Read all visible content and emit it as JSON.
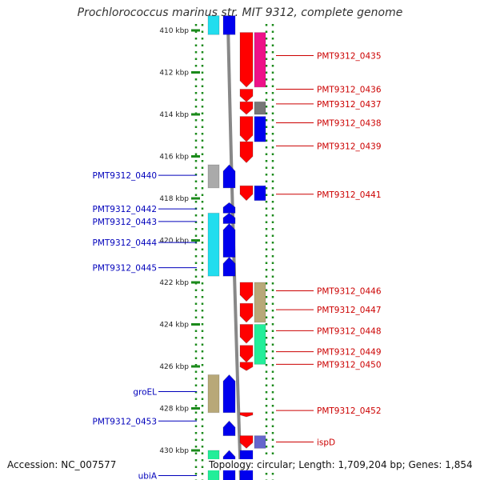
{
  "title": "Prochlorococcus marinus str. MIT 9312, complete genome",
  "footer": {
    "accession": "Accession: NC_007577",
    "topology": "Topology: circular; Length: 1,709,204 bp; Genes: 1,854"
  },
  "colors": {
    "kbp_tick": "#1a8a1a",
    "backbone": "#888888",
    "left_label": "#0000bb",
    "right_label": "#cc0000",
    "gene_red": "#ff0000",
    "gene_blue": "#0000ee"
  },
  "kbp_ticks": [
    {
      "kbp": 410,
      "label": "410 kbp"
    },
    {
      "kbp": 412,
      "label": "412 kbp"
    },
    {
      "kbp": 414,
      "label": "414 kbp"
    },
    {
      "kbp": 416,
      "label": "416 kbp"
    },
    {
      "kbp": 418,
      "label": "418 kbp"
    },
    {
      "kbp": 420,
      "label": "420 kbp"
    },
    {
      "kbp": 422,
      "label": "422 kbp"
    },
    {
      "kbp": 424,
      "label": "424 kbp"
    },
    {
      "kbp": 426,
      "label": "426 kbp"
    },
    {
      "kbp": 428,
      "label": "428 kbp"
    },
    {
      "kbp": 430,
      "label": "430 kbp"
    }
  ],
  "left_labels": [
    {
      "name": "PMT9312_0440",
      "kbp": 416.9
    },
    {
      "name": "PMT9312_0442",
      "kbp": 418.5
    },
    {
      "name": "PMT9312_0443",
      "kbp": 419.1
    },
    {
      "name": "PMT9312_0444",
      "kbp": 420.1
    },
    {
      "name": "PMT9312_0445",
      "kbp": 421.3
    },
    {
      "name": "groEL",
      "kbp": 427.2
    },
    {
      "name": "PMT9312_0453",
      "kbp": 428.6
    },
    {
      "name": "ubiA",
      "kbp": 431.2
    }
  ],
  "right_labels": [
    {
      "name": "PMT9312_0435",
      "kbp": 411.2
    },
    {
      "name": "PMT9312_0436",
      "kbp": 412.8
    },
    {
      "name": "PMT9312_0437",
      "kbp": 413.5
    },
    {
      "name": "PMT9312_0438",
      "kbp": 414.4
    },
    {
      "name": "PMT9312_0439",
      "kbp": 415.5
    },
    {
      "name": "PMT9312_0441",
      "kbp": 417.8
    },
    {
      "name": "PMT9312_0446",
      "kbp": 422.4
    },
    {
      "name": "PMT9312_0447",
      "kbp": 423.3
    },
    {
      "name": "PMT9312_0448",
      "kbp": 424.3
    },
    {
      "name": "PMT9312_0449",
      "kbp": 425.3
    },
    {
      "name": "PMT9312_0450",
      "kbp": 425.9
    },
    {
      "name": "PMT9312_0452",
      "kbp": 428.1
    },
    {
      "name": "ispD",
      "kbp": 429.6
    }
  ],
  "features": [
    {
      "lane": "L1",
      "kbp_start": 409.3,
      "kbp_end": 410.2,
      "color": "#22ddee",
      "shape": "box"
    },
    {
      "lane": "L2",
      "kbp_start": 409.3,
      "kbp_end": 410.2,
      "color": "#0000ee",
      "shape": "box"
    },
    {
      "lane": "R1",
      "kbp_start": 410.1,
      "kbp_end": 412.7,
      "color": "#ff0000",
      "shape": "arrow-down"
    },
    {
      "lane": "R2",
      "kbp_start": 410.1,
      "kbp_end": 412.7,
      "color": "#ee1188",
      "shape": "box"
    },
    {
      "lane": "R1",
      "kbp_start": 412.8,
      "kbp_end": 413.4,
      "color": "#ff0000",
      "shape": "arrow-down"
    },
    {
      "lane": "R1",
      "kbp_start": 413.4,
      "kbp_end": 414.0,
      "color": "#ff0000",
      "shape": "arrow-down"
    },
    {
      "lane": "R2",
      "kbp_start": 413.4,
      "kbp_end": 414.0,
      "color": "#777777",
      "shape": "box"
    },
    {
      "lane": "R1",
      "kbp_start": 414.1,
      "kbp_end": 415.3,
      "color": "#ff0000",
      "shape": "arrow-down"
    },
    {
      "lane": "R2",
      "kbp_start": 414.1,
      "kbp_end": 415.3,
      "color": "#0000ee",
      "shape": "box"
    },
    {
      "lane": "R1",
      "kbp_start": 415.3,
      "kbp_end": 416.3,
      "color": "#ff0000",
      "shape": "arrow-down"
    },
    {
      "lane": "L1",
      "kbp_start": 416.4,
      "kbp_end": 417.5,
      "color": "#aaaaaa",
      "shape": "box"
    },
    {
      "lane": "L2",
      "kbp_start": 416.4,
      "kbp_end": 417.5,
      "color": "#0000ee",
      "shape": "arrow-up"
    },
    {
      "lane": "R1",
      "kbp_start": 417.4,
      "kbp_end": 418.1,
      "color": "#ff0000",
      "shape": "arrow-down"
    },
    {
      "lane": "R2",
      "kbp_start": 417.4,
      "kbp_end": 418.1,
      "color": "#0000ee",
      "shape": "box"
    },
    {
      "lane": "L2",
      "kbp_start": 418.2,
      "kbp_end": 418.7,
      "color": "#0000ee",
      "shape": "arrow-up"
    },
    {
      "lane": "L1",
      "kbp_start": 418.7,
      "kbp_end": 421.7,
      "color": "#22ddee",
      "shape": "box"
    },
    {
      "lane": "L2",
      "kbp_start": 418.7,
      "kbp_end": 419.2,
      "color": "#0000ee",
      "shape": "arrow-up"
    },
    {
      "lane": "L2",
      "kbp_start": 419.2,
      "kbp_end": 420.8,
      "color": "#0000ee",
      "shape": "arrow-up"
    },
    {
      "lane": "L2",
      "kbp_start": 420.8,
      "kbp_end": 421.7,
      "color": "#0000ee",
      "shape": "arrow-up"
    },
    {
      "lane": "R1",
      "kbp_start": 422.0,
      "kbp_end": 422.9,
      "color": "#ff0000",
      "shape": "arrow-down"
    },
    {
      "lane": "R2",
      "kbp_start": 422.0,
      "kbp_end": 423.9,
      "color": "#b8a878",
      "shape": "box"
    },
    {
      "lane": "R1",
      "kbp_start": 423.0,
      "kbp_end": 423.9,
      "color": "#ff0000",
      "shape": "arrow-down"
    },
    {
      "lane": "R1",
      "kbp_start": 424.0,
      "kbp_end": 424.9,
      "color": "#ff0000",
      "shape": "arrow-down"
    },
    {
      "lane": "R2",
      "kbp_start": 424.0,
      "kbp_end": 425.9,
      "color": "#22ee99",
      "shape": "box"
    },
    {
      "lane": "R1",
      "kbp_start": 425.0,
      "kbp_end": 425.8,
      "color": "#ff0000",
      "shape": "arrow-down"
    },
    {
      "lane": "R1",
      "kbp_start": 425.8,
      "kbp_end": 426.2,
      "color": "#ff0000",
      "shape": "arrow-down"
    },
    {
      "lane": "L1",
      "kbp_start": 426.4,
      "kbp_end": 428.2,
      "color": "#b8a878",
      "shape": "box"
    },
    {
      "lane": "L2",
      "kbp_start": 426.4,
      "kbp_end": 428.2,
      "color": "#0000ee",
      "shape": "arrow-up"
    },
    {
      "lane": "R1",
      "kbp_start": 428.2,
      "kbp_end": 428.4,
      "color": "#ff0000",
      "shape": "arrow-down"
    },
    {
      "lane": "L2",
      "kbp_start": 428.6,
      "kbp_end": 429.3,
      "color": "#0000ee",
      "shape": "arrow-up"
    },
    {
      "lane": "R1",
      "kbp_start": 429.3,
      "kbp_end": 429.9,
      "color": "#ff0000",
      "shape": "arrow-down"
    },
    {
      "lane": "R2",
      "kbp_start": 429.3,
      "kbp_end": 429.9,
      "color": "#6666cc",
      "shape": "box"
    },
    {
      "lane": "L1",
      "kbp_start": 430.0,
      "kbp_end": 431.5,
      "color": "#22ee99",
      "shape": "box"
    },
    {
      "lane": "L2",
      "kbp_start": 430.0,
      "kbp_end": 431.5,
      "color": "#0000ee",
      "shape": "arrow-up"
    },
    {
      "lane": "R1",
      "kbp_start": 430.0,
      "kbp_end": 431.5,
      "color": "#0000ee",
      "shape": "box"
    }
  ]
}
